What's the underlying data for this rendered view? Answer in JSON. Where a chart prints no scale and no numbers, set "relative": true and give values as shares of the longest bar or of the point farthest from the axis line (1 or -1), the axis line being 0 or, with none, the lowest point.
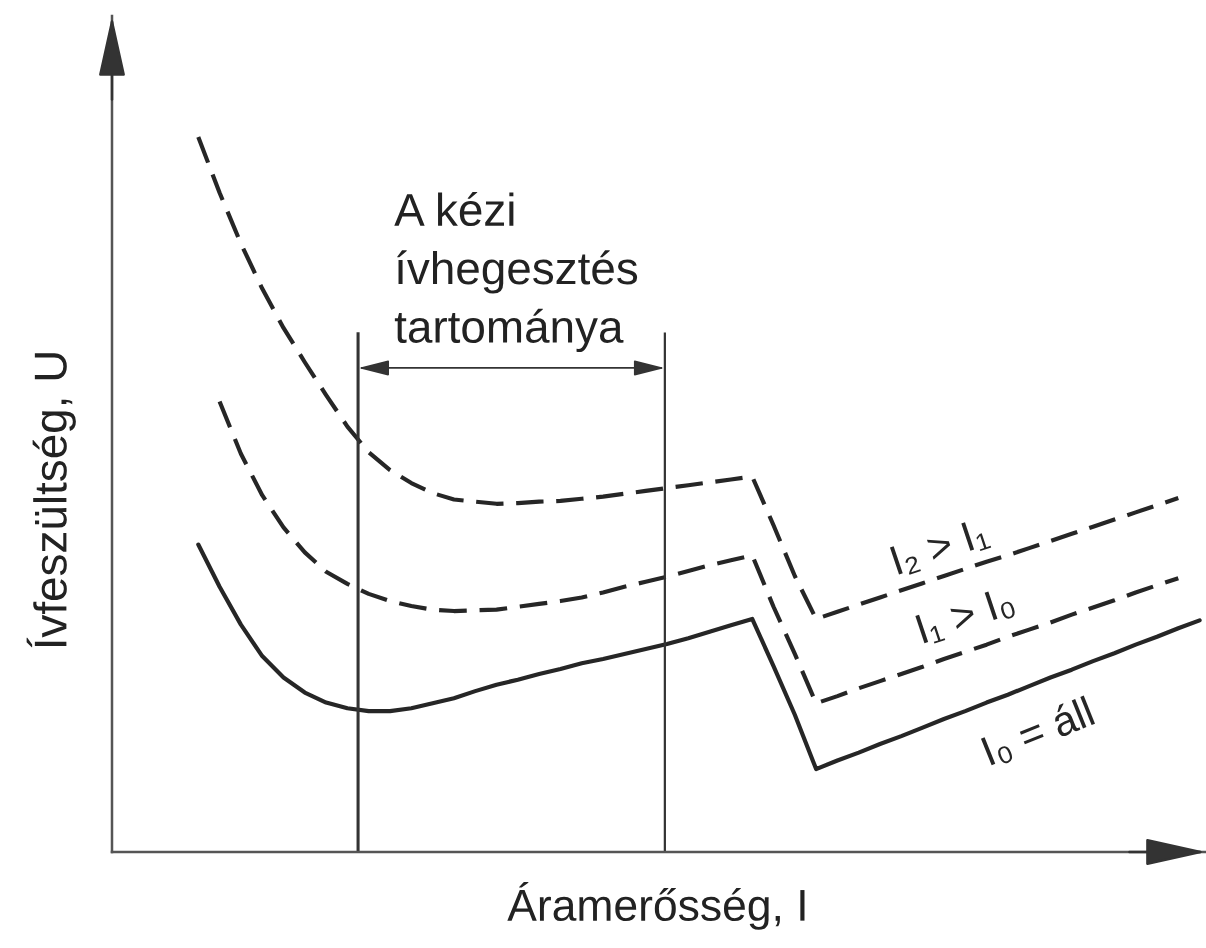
{
  "chart_data": {
    "type": "line",
    "relative": true,
    "xlabel": "Áramerősség, I",
    "ylabel": "Ívfeszültség, U",
    "marker": "none",
    "categories": [
      null,
      null,
      null,
      null,
      null,
      null,
      null,
      null,
      null,
      null,
      null,
      null,
      null,
      null,
      null,
      null,
      null,
      null,
      null,
      null,
      null,
      null,
      null,
      null,
      null,
      null,
      null,
      null,
      null,
      null,
      null,
      null,
      null,
      null,
      null,
      null,
      null,
      null,
      null,
      null,
      null,
      null,
      null,
      null,
      null,
      null,
      null,
      null
    ],
    "series": [
      {
        "name": "I₂ > I₁",
        "color": "#262626",
        "line_style": "dashed",
        "values": [
          1.0,
          0.922,
          0.851,
          0.788,
          0.733,
          0.685,
          0.639,
          0.595,
          0.559,
          0.534,
          0.516,
          0.502,
          0.493,
          0.49,
          0.487,
          0.488,
          0.49,
          0.491,
          0.494,
          0.497,
          0.501,
          0.505,
          0.509,
          0.513,
          0.517,
          0.521,
          0.525,
          0.457,
          0.386,
          0.326,
          0.336,
          0.346,
          0.356,
          0.366,
          0.376,
          0.386,
          0.396,
          0.406,
          0.415,
          0.425,
          0.435,
          0.445,
          0.455,
          0.465,
          0.475,
          0.485,
          0.495,
          null
        ]
      },
      {
        "name": "I₁ > I₀",
        "color": "#262626",
        "line_style": "dashed",
        "values": [
          null,
          0.63,
          0.557,
          0.499,
          0.454,
          0.419,
          0.392,
          0.375,
          0.361,
          0.351,
          0.344,
          0.339,
          0.337,
          0.338,
          0.339,
          0.343,
          0.347,
          0.351,
          0.356,
          0.363,
          0.371,
          0.378,
          0.385,
          0.393,
          0.401,
          0.408,
          0.415,
          0.343,
          0.277,
          0.208,
          0.218,
          0.229,
          0.239,
          0.249,
          0.259,
          0.27,
          0.28,
          0.29,
          0.301,
          0.311,
          0.321,
          0.332,
          0.342,
          0.352,
          0.363,
          0.373,
          0.383,
          null
        ]
      },
      {
        "name": "I₀ = áll",
        "color": "#262626",
        "line_style": "solid",
        "values": [
          0.43,
          0.371,
          0.318,
          0.274,
          0.244,
          0.223,
          0.209,
          0.201,
          0.197,
          0.197,
          0.201,
          0.208,
          0.215,
          0.225,
          0.234,
          0.241,
          0.249,
          0.256,
          0.264,
          0.27,
          0.277,
          0.284,
          0.291,
          0.299,
          0.308,
          0.317,
          0.326,
          0.26,
          0.192,
          0.116,
          0.128,
          0.139,
          0.151,
          0.162,
          0.174,
          0.186,
          0.197,
          0.209,
          0.22,
          0.232,
          0.244,
          0.255,
          0.267,
          0.278,
          0.29,
          0.301,
          0.313,
          0.324
        ]
      }
    ],
    "annotations": [
      "A kézi\nívhegesztés\ntartománya"
    ]
  }
}
